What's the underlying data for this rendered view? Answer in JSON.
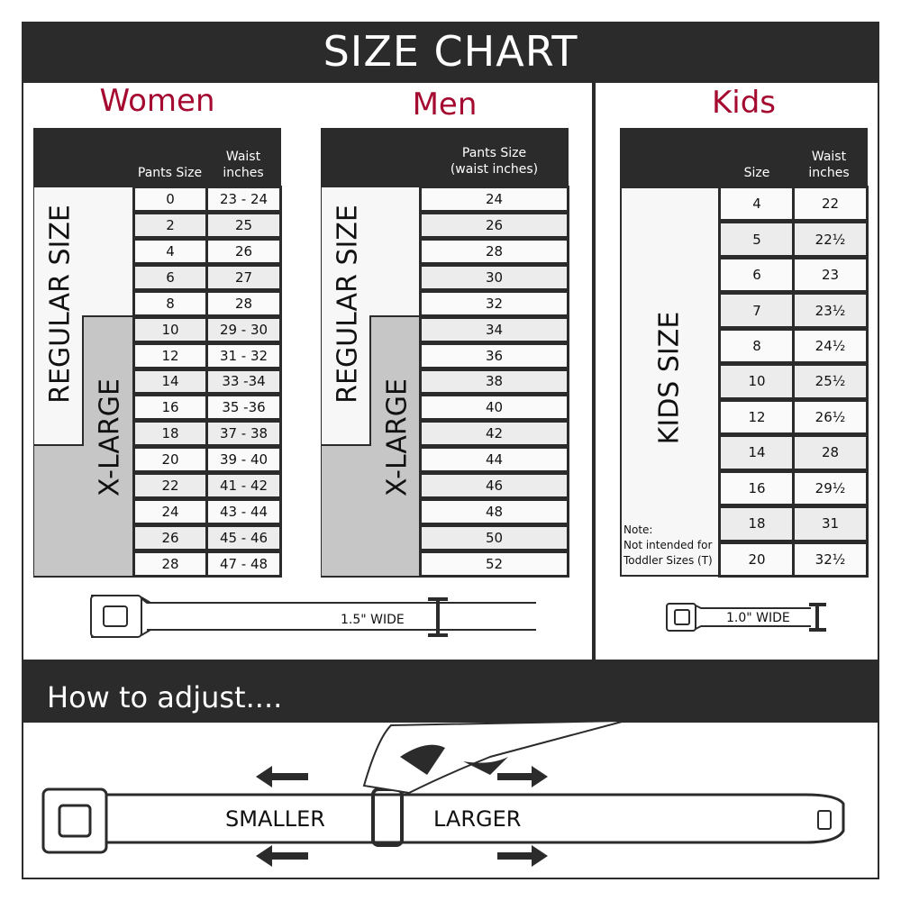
{
  "title": "SIZE CHART",
  "accent_color": "#a50a30",
  "women": {
    "title": "Women",
    "headers": [
      "Pants Size",
      "Waist inches"
    ],
    "regular_label": "REGULAR SIZE",
    "xlarge_label": "X-LARGE",
    "rows": [
      [
        "0",
        "23 - 24"
      ],
      [
        "2",
        "25"
      ],
      [
        "4",
        "26"
      ],
      [
        "6",
        "27"
      ],
      [
        "8",
        "28"
      ],
      [
        "10",
        "29 - 30"
      ],
      [
        "12",
        "31 - 32"
      ],
      [
        "14",
        "33 -34"
      ],
      [
        "16",
        "35 -36"
      ],
      [
        "18",
        "37 - 38"
      ],
      [
        "20",
        "39 - 40"
      ],
      [
        "22",
        "41 - 42"
      ],
      [
        "24",
        "43 - 44"
      ],
      [
        "26",
        "45 - 46"
      ],
      [
        "28",
        "47 - 48"
      ]
    ],
    "belt_width": "1.5\" WIDE"
  },
  "men": {
    "title": "Men",
    "header_line1": "Pants Size",
    "header_line2": "(waist inches)",
    "regular_label": "REGULAR SIZE",
    "xlarge_label": "X-LARGE",
    "rows": [
      "24",
      "26",
      "28",
      "30",
      "32",
      "34",
      "36",
      "38",
      "40",
      "42",
      "44",
      "46",
      "48",
      "50",
      "52"
    ]
  },
  "kids": {
    "title": "Kids",
    "headers": [
      "Size",
      "Waist inches"
    ],
    "label": "KIDS SIZE",
    "note_title": "Note:",
    "note_line1": "Not intended for",
    "note_line2": "Toddler Sizes (T)",
    "rows": [
      [
        "4",
        "22"
      ],
      [
        "5",
        "22½"
      ],
      [
        "6",
        "23"
      ],
      [
        "7",
        "23½"
      ],
      [
        "8",
        "24½"
      ],
      [
        "10",
        "25½"
      ],
      [
        "12",
        "26½"
      ],
      [
        "14",
        "28"
      ],
      [
        "16",
        "29½"
      ],
      [
        "18",
        "31"
      ],
      [
        "20",
        "32½"
      ]
    ],
    "belt_width": "1.0\" WIDE"
  },
  "adjust": {
    "title": "How to adjust....",
    "smaller": "SMALLER",
    "larger": "LARGER"
  }
}
